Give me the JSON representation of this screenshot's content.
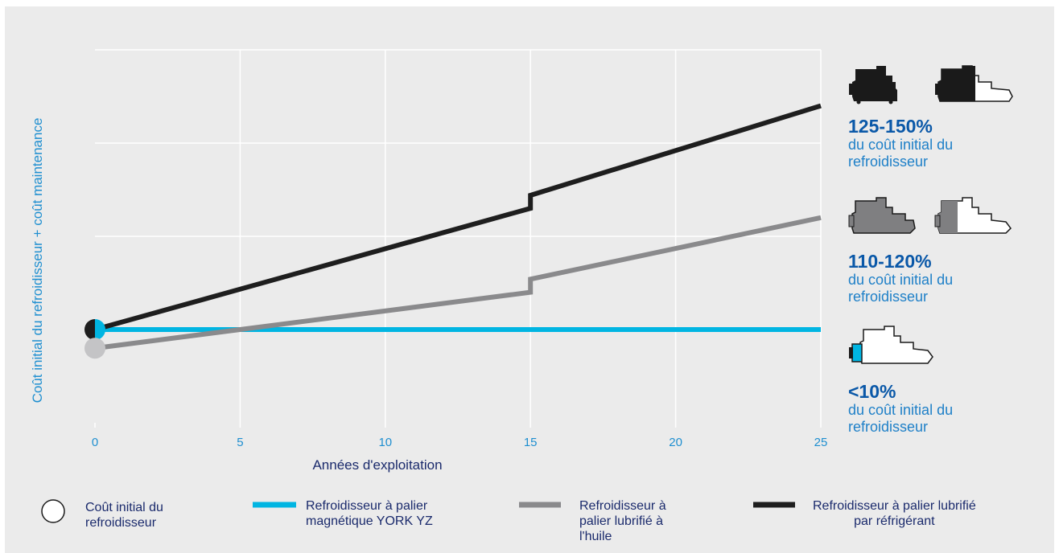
{
  "chart_data": {
    "type": "line",
    "xlabel": "Années d'exploitation",
    "ylabel": "Coût initial du refroidisseur + coût maintenance",
    "xlim": [
      0,
      25
    ],
    "x_ticks": [
      "0",
      "5",
      "10",
      "15",
      "20",
      "25"
    ],
    "grid": true,
    "series": [
      {
        "name": "Refroidisseur à palier magnétique YORK YZ",
        "color": "#00b5e2",
        "x": [
          0,
          25
        ],
        "y": [
          1.0,
          1.0
        ]
      },
      {
        "name": "Refroidisseur à palier lubrifié à l'huile",
        "color": "#8a8a8c",
        "x": [
          0,
          15,
          15,
          25
        ],
        "y": [
          0.9,
          1.2,
          1.27,
          1.6
        ]
      },
      {
        "name": "Refroidisseur à palier lubrifié par réfrigérant",
        "color": "#1e1e1e",
        "x": [
          0,
          15,
          15,
          25
        ],
        "y": [
          1.0,
          1.65,
          1.72,
          2.2
        ]
      }
    ],
    "start_markers": [
      {
        "series": "Refroidisseur à palier lubrifié par réfrigérant",
        "x": 0,
        "y": 1.0
      },
      {
        "series": "Refroidisseur à palier lubrifié à l'huile",
        "x": 0,
        "y": 0.9
      }
    ],
    "annotations": [
      {
        "percent": "125-150%",
        "text": "du coût initial du\nrefroidisseur"
      },
      {
        "percent": "110-120%",
        "text": "du coût initial du\nrefroidisseur"
      },
      {
        "percent": "<10%",
        "text": "du coût initial du\nrefroidisseur"
      }
    ],
    "legend": {
      "placement": "bottom",
      "items": [
        {
          "label": "Coût initial du\nrefroidisseur",
          "symbol": "circle"
        },
        {
          "label": "Refroidisseur à palier\nmagnétique YORK YZ",
          "color": "#00b5e2"
        },
        {
          "label": "Refroidisseur à\npalier lubrifié à\nl'huile",
          "color": "#8a8a8c"
        },
        {
          "label": "Refroidisseur à palier lubrifié\npar réfrigérant",
          "color": "#1e1e1e"
        }
      ]
    }
  },
  "icons": {
    "refrigerant_pair": "chiller-icon",
    "oil_pair": "chiller-icon",
    "magnetic": "chiller-icon"
  }
}
